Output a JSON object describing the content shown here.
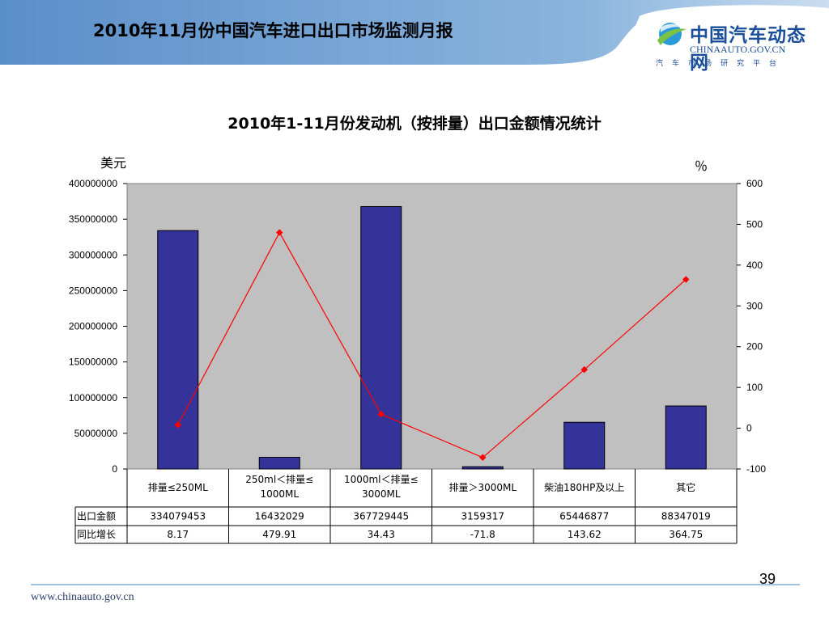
{
  "slide": {
    "title": "2010年11月份中国汽车进口出口市场监测月报",
    "page_number": "39",
    "footer_url": "www.chinaauto.gov.cn"
  },
  "logo": {
    "name": "中国汽车动态网",
    "domain": "CHINAAUTO.GOV.CN",
    "tagline": "汽车市场研究平台"
  },
  "colors": {
    "header_band": "#6f9fd1",
    "plot_bg": "#c0c0c0",
    "bar": "#333399",
    "line": "#ff0000"
  },
  "chart_data": {
    "type": "bar",
    "title": "2010年1-11月份发动机（按排量）出口金额情况统计",
    "left_axis_label": "美元",
    "right_axis_label": "％",
    "categories": [
      "排量≤250ML",
      "250ml＜排量≤1000ML",
      "1000ml＜排量≤3000ML",
      "排量＞3000ML",
      "柴油180HP及以上",
      "其它"
    ],
    "category_lines": [
      [
        "排量≤250ML"
      ],
      [
        "250ml＜排量≤",
        "1000ML"
      ],
      [
        "1000ml＜排量≤",
        "3000ML"
      ],
      [
        "排量＞3000ML"
      ],
      [
        "柴油180HP及以上"
      ],
      [
        "其它"
      ]
    ],
    "series": [
      {
        "name": "出口金额",
        "type": "bar",
        "axis": "left",
        "values": [
          334079453,
          16432029,
          367729445,
          3159317,
          65446877,
          88347019
        ]
      },
      {
        "name": "同比增长",
        "type": "line",
        "axis": "right",
        "values": [
          8.17,
          479.91,
          34.43,
          -71.8,
          143.62,
          364.75
        ]
      }
    ],
    "table_rows": [
      {
        "label": "出口金额",
        "values": [
          "334079453",
          "16432029",
          "367729445",
          "3159317",
          "65446877",
          "88347019"
        ]
      },
      {
        "label": "同比增长",
        "values": [
          "8.17",
          "479.91",
          "34.43",
          "-71.8",
          "143.62",
          "364.75"
        ]
      }
    ],
    "ylim_left": [
      0,
      400000000
    ],
    "yticks_left": [
      "400000000",
      "350000000",
      "300000000",
      "250000000",
      "200000000",
      "150000000",
      "100000000",
      "50000000",
      "0"
    ],
    "ylim_right": [
      -100,
      600
    ],
    "yticks_right": [
      "600",
      "500",
      "400",
      "300",
      "200",
      "100",
      "0",
      "-100"
    ],
    "grid": false,
    "legend": "data-table"
  }
}
